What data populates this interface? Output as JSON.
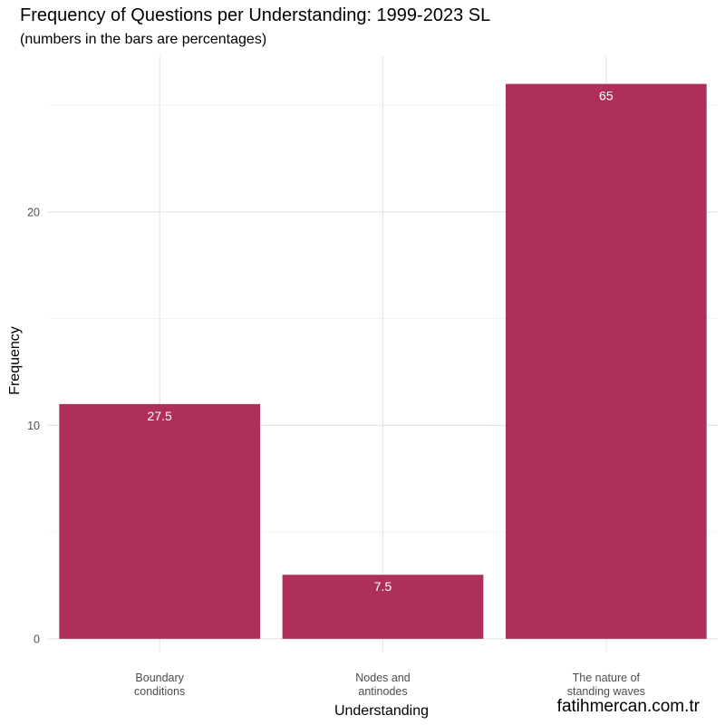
{
  "chart_data": {
    "type": "bar",
    "title": "Frequency of Questions per Understanding: 1999-2023 SL",
    "subtitle": "(numbers in the bars are percentages)",
    "xlabel": "Understanding",
    "ylabel": "Frequency",
    "categories": [
      [
        "Boundary",
        "conditions"
      ],
      [
        "Nodes and",
        "antinodes"
      ],
      [
        "The nature of",
        "standing waves"
      ]
    ],
    "values": [
      11,
      3,
      26
    ],
    "bar_labels": [
      "27.5",
      "7.5",
      "65"
    ],
    "yticks": [
      0,
      10,
      20
    ],
    "ylim": [
      -0.6,
      27.3
    ],
    "bar_color": "#ae2f5c",
    "grid": true
  },
  "watermark": "fatihmercan.com.tr"
}
